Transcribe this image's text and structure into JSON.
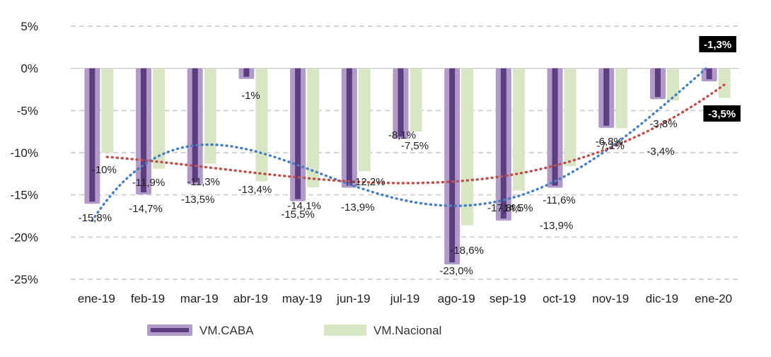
{
  "chart_data": {
    "type": "bar",
    "categories": [
      "ene-19",
      "feb-19",
      "mar-19",
      "abr-19",
      "may-19",
      "jun-19",
      "jul-19",
      "ago-19",
      "sep-19",
      "oct-19",
      "nov-19",
      "dic-19",
      "ene-20"
    ],
    "ylim": [
      -25,
      5
    ],
    "yticks": [
      5,
      0,
      -5,
      -10,
      -15,
      -20,
      -25
    ],
    "ytick_labels": [
      "5%",
      "0%",
      "-5%",
      "-10%",
      "-15%",
      "-20%",
      "-25%"
    ],
    "grid": true,
    "legend_position": "bottom",
    "series": [
      {
        "name": "VM.CABA",
        "color": "#5b3d80",
        "outline_color": "#b09ac8",
        "values": [
          -15.8,
          -14.7,
          -13.5,
          -1,
          -15.5,
          -13.9,
          -8.1,
          -23.0,
          -17.8,
          -13.9,
          -6.8,
          -3.4,
          -1.3
        ],
        "labels": [
          "-15,8%",
          "-14,7%",
          "-13,5%",
          "-1%",
          "-15,5%",
          "-13,9%",
          "-8,1%",
          "-23,0%",
          "-17,8%",
          "-13,9%",
          "-6,8%",
          "-3,4%",
          "-1,3%"
        ]
      },
      {
        "name": "VM.Nacional",
        "color": "#d8e6c5",
        "values": [
          -10,
          -11.9,
          -11.3,
          -13.4,
          -14.1,
          -12.2,
          -7.5,
          -18.6,
          -14.5,
          -11.6,
          -7.1,
          -3.8,
          -3.5
        ],
        "labels": [
          "-10%",
          "-11,9%",
          "-11,3%",
          "-13,4%",
          "-14,1%",
          "-12,2%",
          "-7,5%",
          "-18,6%",
          "-14,5%",
          "-11,6%",
          "-7,1%",
          "-3,8%",
          "-3,5%"
        ]
      }
    ],
    "trendlines": [
      {
        "of": "VM.CABA",
        "kind": "polynomial",
        "style": "dotted",
        "color": "#4a7fc0"
      },
      {
        "of": "VM.Nacional",
        "kind": "polynomial",
        "style": "dotted",
        "color": "#c0504d"
      }
    ],
    "highlighted_labels": [
      "-1,3%",
      "-3,5%"
    ]
  }
}
